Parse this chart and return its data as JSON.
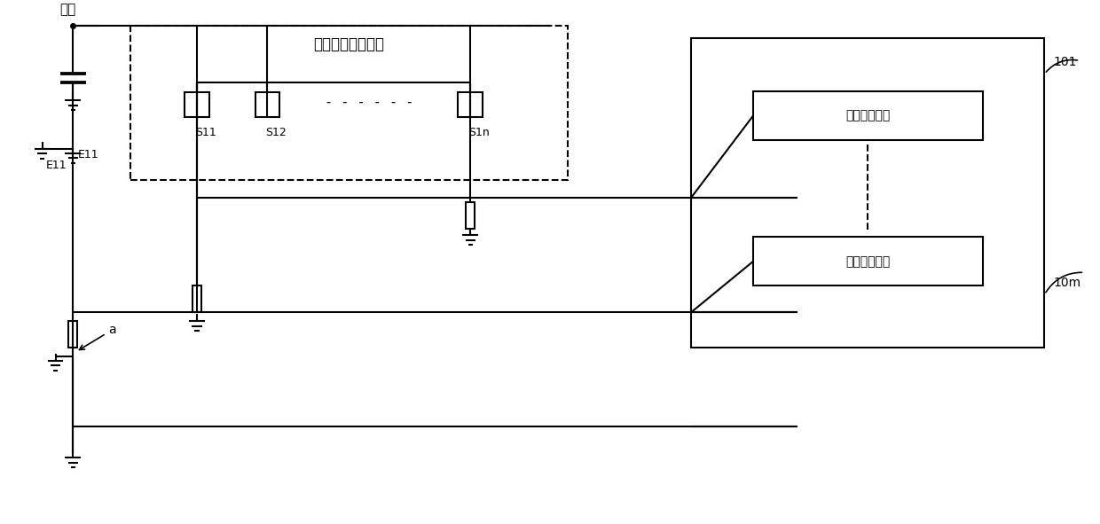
{
  "bg_color": "#ffffff",
  "line_color": "#000000",
  "dashed_line_color": "#000000",
  "fig_width": 12.4,
  "fig_height": 5.91,
  "title_text": "硅半导体探测阵列",
  "detector_box_label1": "时间检测单元",
  "detector_box_label2": "时间检测单元",
  "label_101": "101",
  "label_10m": "10m",
  "label_power": "电源",
  "label_E11": "E11",
  "label_S11": "S11",
  "label_S12": "S12",
  "label_S1n": "S1n",
  "label_a": "a"
}
